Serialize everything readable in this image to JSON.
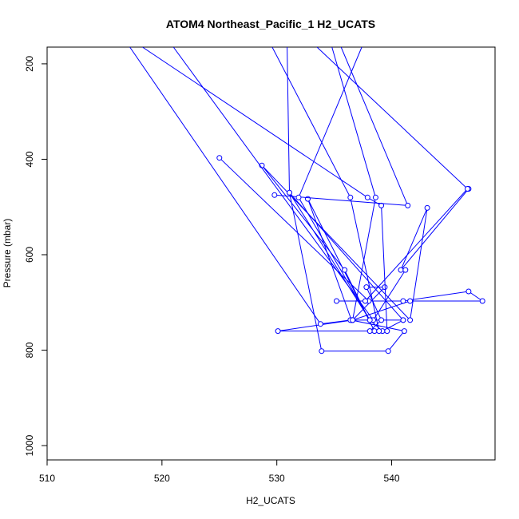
{
  "chart_data": {
    "type": "line",
    "title": "ATOM4 Northeast_Pacific_1 H2_UCATS",
    "xlabel": "H2_UCATS",
    "ylabel": "Pressure (mbar)",
    "xlim": [
      510,
      549
    ],
    "ylim": [
      1030,
      165
    ],
    "y_reversed": true,
    "xticks": [
      510,
      520,
      530,
      540
    ],
    "yticks": [
      200,
      400,
      600,
      800,
      1000
    ],
    "color": "#0000ff",
    "marker": "open-circle",
    "grid": false,
    "legend": "none",
    "series": [
      {
        "x": [
          525.0,
          538.0,
          535.2,
          541.0,
          546.7,
          547.9,
          541.6,
          536.6,
          530.1,
          538.1,
          539.1,
          537.8,
          539.4,
          536.6,
          541.0,
          539.2,
          538.1,
          531.1,
          533.9,
          539.7,
          541.1,
          536.5,
          532.7,
          538.5,
          535.9,
          528.7,
          541.6,
          543.1,
          540.8,
          546.7
        ],
        "y": [
          397,
          697,
          697,
          697,
          677,
          697,
          697,
          737,
          760,
          760,
          737,
          668,
          668,
          737,
          737,
          760,
          737,
          470,
          802,
          802,
          760,
          737,
          483,
          760,
          632,
          413,
          737,
          502,
          632,
          462
        ]
      },
      {
        "x": [
          517.2,
          533.8,
          536.4
        ],
        "y": [
          165,
          745,
          737
        ]
      },
      {
        "x": [
          521.0,
          538.4,
          541.2
        ],
        "y": [
          165,
          737,
          632
        ]
      },
      {
        "x": [
          518.3,
          537.9,
          539.1,
          539.6
        ],
        "y": [
          165,
          480,
          497,
          760
        ]
      },
      {
        "x": [
          529.6,
          536.4,
          538.9
        ],
        "y": [
          165,
          480,
          760
        ]
      },
      {
        "x": [
          534.8,
          538.6,
          536.6
        ],
        "y": [
          165,
          480,
          737
        ]
      },
      {
        "x": [
          530.9,
          531.1,
          541.0
        ],
        "y": [
          165,
          470,
          737
        ]
      },
      {
        "x": [
          535.6,
          541.4,
          529.8
        ],
        "y": [
          165,
          497,
          475
        ]
      },
      {
        "x": [
          537.4,
          531.9,
          538.1
        ],
        "y": [
          165,
          480,
          737
        ]
      },
      {
        "x": [
          533.5,
          546.6,
          537.7
        ],
        "y": [
          165,
          462,
          697
        ]
      }
    ]
  }
}
